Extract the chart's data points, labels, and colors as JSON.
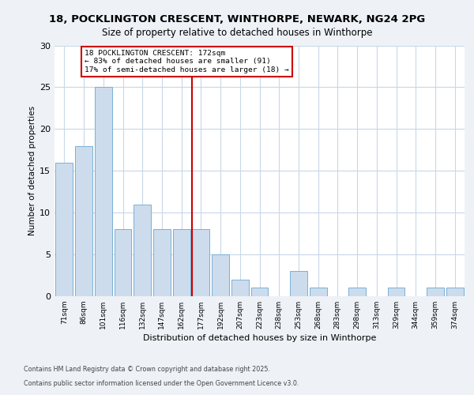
{
  "title_line1": "18, POCKLINGTON CRESCENT, WINTHORPE, NEWARK, NG24 2PG",
  "title_line2": "Size of property relative to detached houses in Winthorpe",
  "xlabel": "Distribution of detached houses by size in Winthorpe",
  "ylabel": "Number of detached properties",
  "categories": [
    "71sqm",
    "86sqm",
    "101sqm",
    "116sqm",
    "132sqm",
    "147sqm",
    "162sqm",
    "177sqm",
    "192sqm",
    "207sqm",
    "223sqm",
    "238sqm",
    "253sqm",
    "268sqm",
    "283sqm",
    "298sqm",
    "313sqm",
    "329sqm",
    "344sqm",
    "359sqm",
    "374sqm"
  ],
  "values": [
    16,
    18,
    25,
    8,
    11,
    8,
    8,
    8,
    5,
    2,
    1,
    0,
    3,
    1,
    0,
    1,
    0,
    1,
    0,
    1,
    1
  ],
  "bar_color": "#ccdcec",
  "bar_edge_color": "#7ab0d4",
  "vline_color": "#cc0000",
  "annotation_title": "18 POCKLINGTON CRESCENT: 172sqm",
  "annotation_line2": "← 83% of detached houses are smaller (91)",
  "annotation_line3": "17% of semi-detached houses are larger (18) →",
  "annotation_box_color": "#cc0000",
  "ylim": [
    0,
    30
  ],
  "yticks": [
    0,
    5,
    10,
    15,
    20,
    25,
    30
  ],
  "footer1": "Contains HM Land Registry data © Crown copyright and database right 2025.",
  "footer2": "Contains public sector information licensed under the Open Government Licence v3.0.",
  "bg_color": "#eef2f7",
  "plot_bg_color": "#ffffff",
  "grid_color": "#c8d8e8"
}
